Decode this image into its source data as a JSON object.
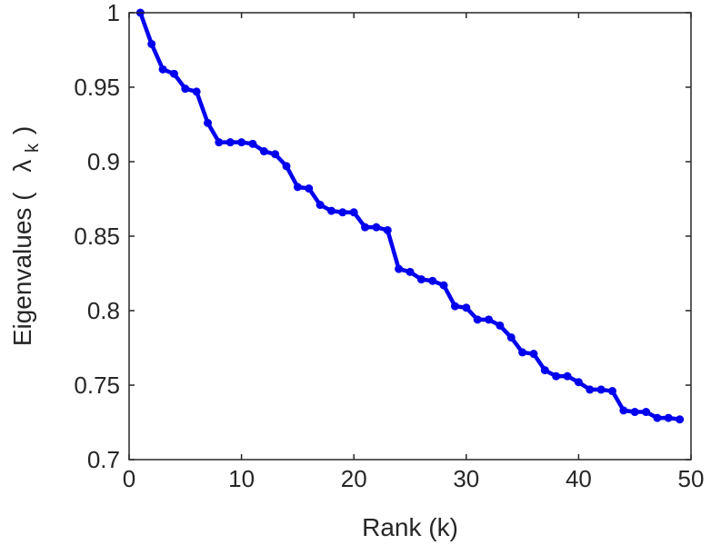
{
  "chart_data": {
    "type": "line",
    "title": "",
    "xlabel": "Rank (k)",
    "ylabel_parts": {
      "before": "Eigenvalues (",
      "symbol": "λ",
      "subscript": "k",
      "after": ")"
    },
    "xlim": [
      0,
      50
    ],
    "ylim": [
      0.7,
      1.0
    ],
    "xticks": [
      0,
      10,
      20,
      30,
      40,
      50
    ],
    "yticks": [
      0.7,
      0.75,
      0.8,
      0.85,
      0.9,
      0.95,
      1.0
    ],
    "xtick_labels": [
      "0",
      "10",
      "20",
      "30",
      "40",
      "50"
    ],
    "ytick_labels": [
      "0.7",
      "0.75",
      "0.8",
      "0.85",
      "0.9",
      "0.95",
      "1"
    ],
    "grid": false,
    "legend": "none",
    "series": [
      {
        "color": "#0000ee",
        "marker": "circle",
        "x": [
          1,
          2,
          3,
          4,
          5,
          6,
          7,
          8,
          9,
          10,
          11,
          12,
          13,
          14,
          15,
          16,
          17,
          18,
          19,
          20,
          21,
          22,
          23,
          24,
          25,
          26,
          27,
          28,
          29,
          30,
          31,
          32,
          33,
          34,
          35,
          36,
          37,
          38,
          39,
          40,
          41,
          42,
          43,
          44,
          45,
          46,
          47,
          48,
          49
        ],
        "y": [
          1.0,
          0.979,
          0.962,
          0.959,
          0.949,
          0.947,
          0.926,
          0.913,
          0.913,
          0.913,
          0.912,
          0.907,
          0.905,
          0.897,
          0.883,
          0.882,
          0.871,
          0.867,
          0.866,
          0.866,
          0.856,
          0.856,
          0.854,
          0.828,
          0.826,
          0.821,
          0.82,
          0.817,
          0.803,
          0.802,
          0.794,
          0.794,
          0.79,
          0.782,
          0.772,
          0.771,
          0.76,
          0.756,
          0.756,
          0.752,
          0.747,
          0.747,
          0.746,
          0.733,
          0.732,
          0.732,
          0.728,
          0.728,
          0.727
        ]
      }
    ]
  }
}
